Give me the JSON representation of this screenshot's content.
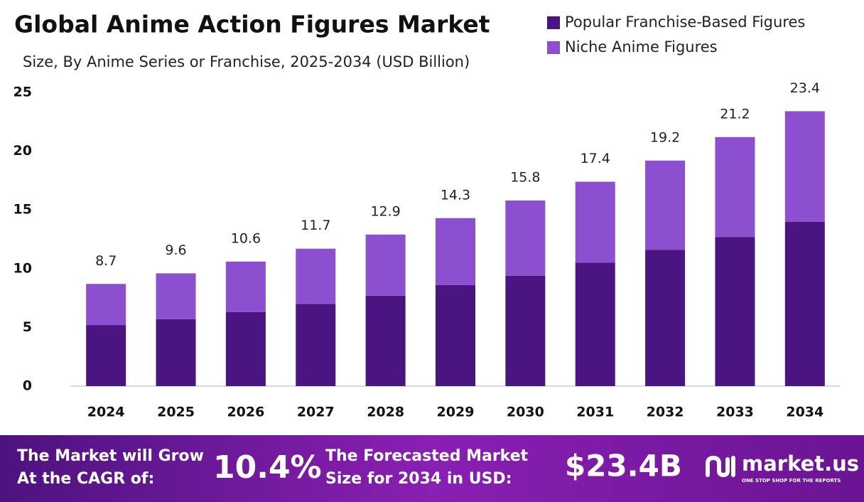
{
  "chart_data": {
    "type": "stacked-bar",
    "title": "Global Anime Action Figures Market",
    "subtitle": "Size, By Anime Series or Franchise, 2025-2034 (USD Billion)",
    "categories": [
      "2024",
      "2025",
      "2026",
      "2027",
      "2028",
      "2029",
      "2030",
      "2031",
      "2032",
      "2033",
      "2034"
    ],
    "series": [
      {
        "name": "Popular Franchise-Based Figures",
        "color": "#4b1581",
        "values": [
          5.2,
          5.7,
          6.3,
          7.0,
          7.7,
          8.6,
          9.4,
          10.5,
          11.6,
          12.7,
          14.0
        ]
      },
      {
        "name": "Niche Anime Figures",
        "color": "#8b4fd0",
        "values": [
          3.5,
          3.9,
          4.3,
          4.7,
          5.2,
          5.7,
          6.4,
          6.9,
          7.6,
          8.5,
          9.4
        ]
      }
    ],
    "totals": [
      8.7,
      9.6,
      10.6,
      11.7,
      12.9,
      14.3,
      15.8,
      17.4,
      19.2,
      21.2,
      23.4
    ],
    "ylim": [
      0,
      25
    ],
    "yticks": [
      0,
      5,
      10,
      15,
      20,
      25
    ],
    "grid": false,
    "legend": "top-right"
  },
  "footer": {
    "cagr_line1": "The Market will Grow",
    "cagr_line2": "At the CAGR of:",
    "cagr": "10.4%",
    "size_line1": "The Forecasted Market",
    "size_line2": "Size for 2034 in USD:",
    "size": "$23.4B",
    "brand": "market.us",
    "tagline": "ONE STOP SHOP FOR THE REPORTS"
  }
}
